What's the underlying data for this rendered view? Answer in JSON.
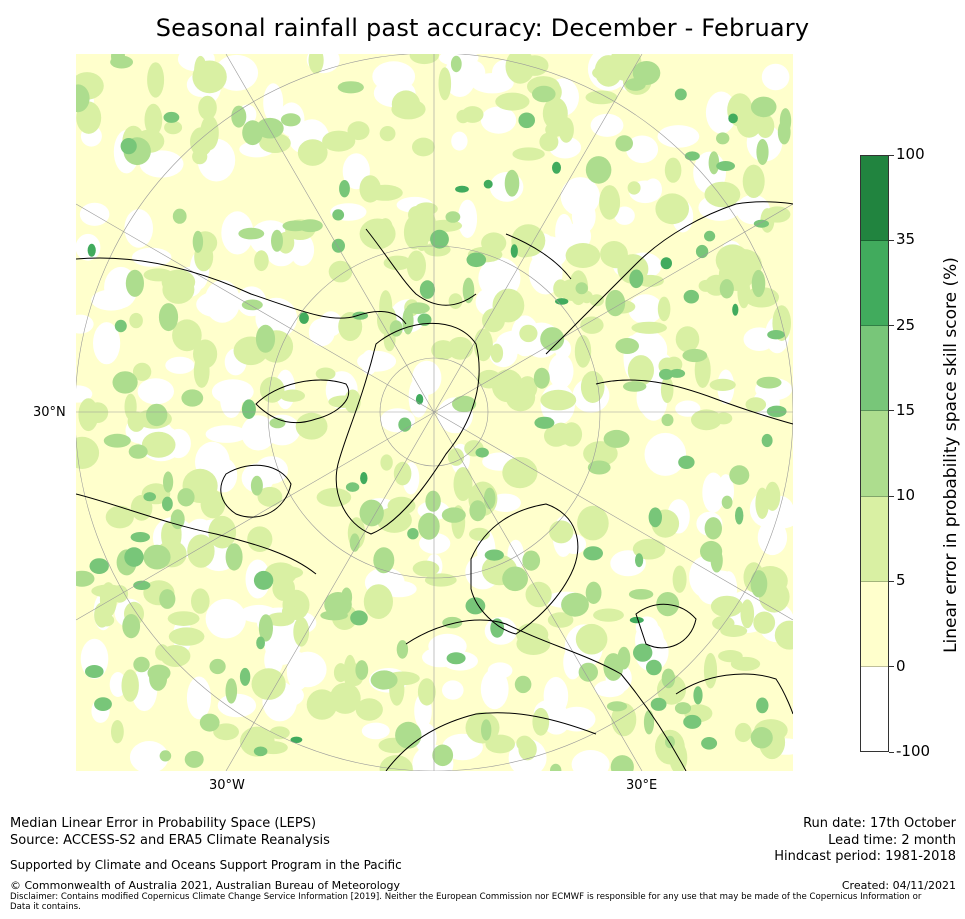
{
  "title": "Seasonal rainfall past accuracy: December - February",
  "map": {
    "lat_label": "30°N",
    "lon_labels": [
      "30°W",
      "30°E"
    ],
    "projection": "north-polar-stereographic"
  },
  "colorbar": {
    "label": "Linear error in probability space skill score (%)",
    "ticks": [
      "100",
      "35",
      "25",
      "15",
      "10",
      "5",
      "0",
      "-100"
    ],
    "colors": [
      "#21843f",
      "#41ab5d",
      "#78c679",
      "#addd8e",
      "#d9f0a3",
      "#ffffcc",
      "#ffffff"
    ]
  },
  "footer": {
    "left_line1": "Median Linear Error in Probability Space (LEPS)",
    "left_line2": "Source: ACCESS-S2 and ERA5 Climate Reanalysis",
    "support": "Supported by Climate and Oceans Support Program in the Pacific",
    "copyright": "© Commonwealth of Australia 2021, Australian Bureau of Meteorology",
    "disclaimer": "Disclaimer: Contains modified Copernicus Climate Change Service Information [2019]. Neither the European Commission nor ECMWF is responsible for any use that may be made of the Copernicus Information or Data it contains.",
    "run_date": "Run date: 17th October",
    "lead_time": "Lead time: 2 month",
    "hindcast": "Hindcast period: 1981-2018",
    "created": "Created: 04/11/2021"
  }
}
